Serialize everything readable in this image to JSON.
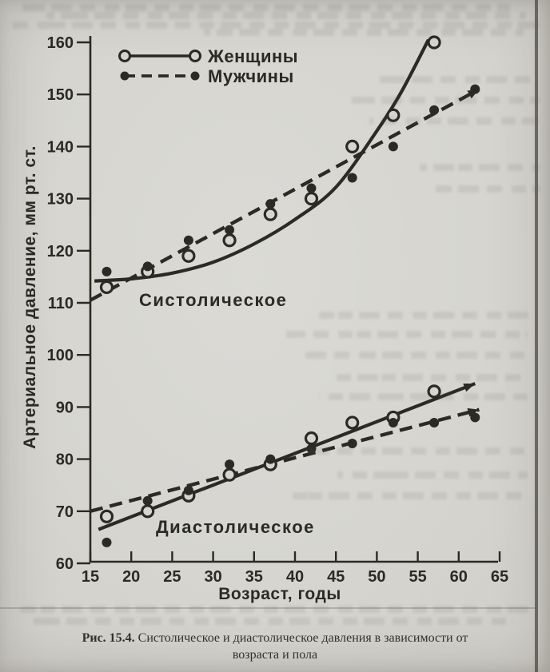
{
  "figure": {
    "caption_number": "Рис. 15.4.",
    "caption_text": "Систолическое и диастолическое давления в зависимости от возраста и пола"
  },
  "chart_data": {
    "type": "scatter",
    "title": "",
    "xlabel": "Возраст, годы",
    "ylabel": "Артериальное давление, мм рт. ст.",
    "xlim": [
      15,
      65
    ],
    "ylim": [
      60,
      160
    ],
    "xticks": [
      15,
      20,
      25,
      30,
      35,
      40,
      45,
      50,
      55,
      60,
      65
    ],
    "yticks": [
      60,
      70,
      80,
      90,
      100,
      110,
      120,
      130,
      140,
      150,
      160
    ],
    "grid": false,
    "legend_position": "upper-left",
    "ink_color": "#2b2a25",
    "paper_color": "#d6d5d0",
    "legend": [
      {
        "label": "Женщины",
        "marker": "open-circle",
        "line": "solid"
      },
      {
        "label": "Мужчины",
        "marker": "filled-circle",
        "line": "dashed"
      }
    ],
    "annotations": [
      {
        "text": "Систолическое",
        "x": 21,
        "y": 110.9
      },
      {
        "text": "Диастолическое",
        "x": 23,
        "y": 66.0
      }
    ],
    "series": [
      {
        "name": "Систолическое — Женщины",
        "group": "systolic",
        "sex": "women",
        "marker": "open-circle",
        "line": "solid",
        "arrow_end": false,
        "points": [
          [
            17,
            113
          ],
          [
            22,
            116
          ],
          [
            27,
            119
          ],
          [
            32,
            122
          ],
          [
            37,
            127
          ],
          [
            42,
            130
          ],
          [
            47,
            140
          ],
          [
            52,
            146
          ],
          [
            57,
            160
          ]
        ],
        "trend": [
          [
            15.5,
            114.2
          ],
          [
            20,
            114.6
          ],
          [
            25,
            115.7
          ],
          [
            30,
            117.8
          ],
          [
            35,
            121.3
          ],
          [
            40,
            126
          ],
          [
            45,
            132.2
          ],
          [
            50,
            143
          ],
          [
            53,
            150.5
          ],
          [
            56.3,
            160.5
          ]
        ]
      },
      {
        "name": "Систолическое — Мужчины",
        "group": "systolic",
        "sex": "men",
        "marker": "filled-circle",
        "line": "dashed",
        "arrow_end": true,
        "points": [
          [
            17,
            116
          ],
          [
            22,
            117
          ],
          [
            27,
            122
          ],
          [
            32,
            124
          ],
          [
            37,
            129
          ],
          [
            42,
            132
          ],
          [
            47,
            134
          ],
          [
            52,
            140
          ],
          [
            57,
            147
          ],
          [
            62,
            151
          ]
        ],
        "trend": [
          [
            15,
            110.5
          ],
          [
            62.5,
            151
          ]
        ]
      },
      {
        "name": "Диастолическое — Женщины",
        "group": "diastolic",
        "sex": "women",
        "marker": "open-circle",
        "line": "solid",
        "arrow_end": true,
        "points": [
          [
            17,
            69
          ],
          [
            22,
            70
          ],
          [
            27,
            73
          ],
          [
            32,
            77
          ],
          [
            37,
            79
          ],
          [
            42,
            84
          ],
          [
            47,
            87
          ],
          [
            52,
            88
          ],
          [
            57,
            93
          ]
        ],
        "trend": [
          [
            16,
            66.5
          ],
          [
            62,
            94.5
          ]
        ]
      },
      {
        "name": "Диастолическое — Мужчины",
        "group": "diastolic",
        "sex": "men",
        "marker": "filled-circle",
        "line": "dashed",
        "arrow_end": true,
        "points": [
          [
            17,
            64
          ],
          [
            22,
            72
          ],
          [
            27,
            74
          ],
          [
            32,
            79
          ],
          [
            37,
            80
          ],
          [
            42,
            82
          ],
          [
            47,
            83
          ],
          [
            52,
            87
          ],
          [
            57,
            87
          ],
          [
            62,
            88
          ]
        ],
        "trend": [
          [
            15,
            70
          ],
          [
            62.5,
            89.5
          ]
        ]
      }
    ]
  }
}
